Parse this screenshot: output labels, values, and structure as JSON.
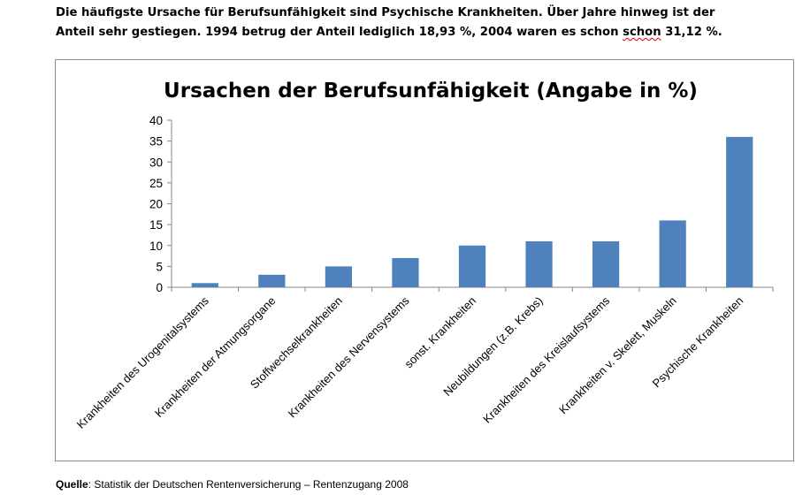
{
  "intro": {
    "line1": "Die häufigste Ursache für Berufsunfähigkeit sind Psychische Krankheiten. Über Jahre hinweg ist der",
    "line2_before": "Anteil sehr gestiegen. 1994 betrug der Anteil lediglich 18,93 %, 2004 waren es schon ",
    "line2_flagged": "schon",
    "line2_after": " 31,12 %."
  },
  "source": {
    "label": "Quelle",
    "text": ": Statistik der Deutschen Rentenversicherung – Rentenzugang 2008"
  },
  "colors": {
    "bar": "#4f81bd",
    "axis": "#868686",
    "frame": "#8c8c8c",
    "spellcheck": "#e00000"
  },
  "chart_data": {
    "type": "bar",
    "title": "Ursachen der Berufsunfähigkeit (Angabe in %)",
    "xlabel": "",
    "ylabel": "",
    "categories": [
      "Krankheiten des Urogenitalsystems",
      "Krankheiten der Atmungsorgane",
      "Stoffwechselkrankheiten",
      "Krankheiten des Nervensystems",
      "sonst. Krankheiten",
      "Neubildungen (z.B. Krebs)",
      "Krankheiten des Kreislaufsystems",
      "Krankheiten v. Skelett, Muskeln",
      "Psychische Krankheiten"
    ],
    "values": [
      1,
      3,
      5,
      7,
      10,
      11,
      11,
      16,
      36
    ],
    "ylim": [
      0,
      40
    ],
    "yticks": [
      0,
      5,
      10,
      15,
      20,
      25,
      30,
      35,
      40
    ],
    "grid": false,
    "legend": "none"
  }
}
